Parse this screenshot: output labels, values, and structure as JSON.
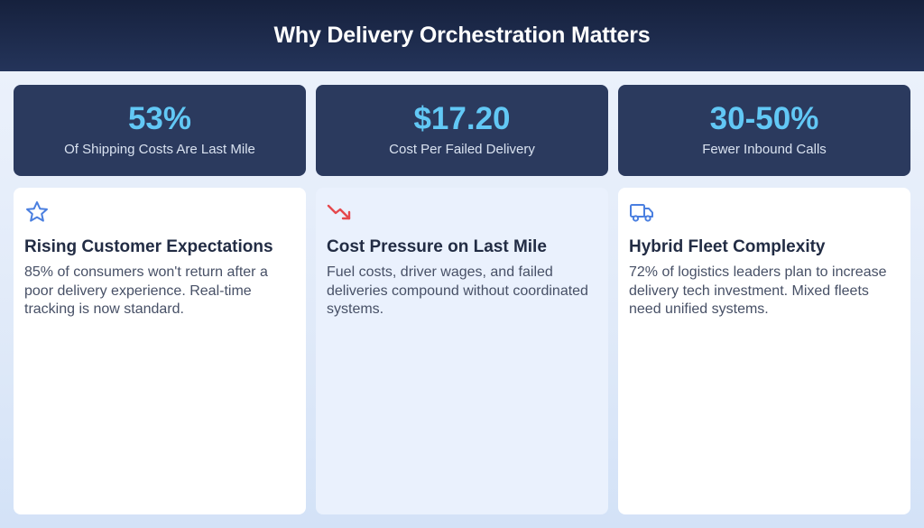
{
  "header": {
    "title": "Why Delivery Orchestration Matters"
  },
  "stats": [
    {
      "value": "53%",
      "label": "Of Shipping Costs Are Last Mile"
    },
    {
      "value": "$17.20",
      "label": "Cost Per Failed Delivery"
    },
    {
      "value": "30-50%",
      "label": "Fewer Inbound Calls"
    }
  ],
  "cards": [
    {
      "icon": "star-icon",
      "title": "Rising Customer Expectations",
      "body": "85% of consumers won't return after a poor delivery experience. Real-time tracking is now standard."
    },
    {
      "icon": "trending-down-icon",
      "title": "Cost Pressure on Last Mile",
      "body": "Fuel costs, driver wages, and failed deliveries compound without coordinated systems."
    },
    {
      "icon": "truck-icon",
      "title": "Hybrid Fleet Complexity",
      "body": "72% of logistics leaders plan to increase delivery tech investment. Mixed fleets need unified systems."
    }
  ],
  "colors": {
    "accent": "#62c8f5",
    "stat_bg": "#2b3a5e",
    "header_bg": "#1c2a4a",
    "star_icon": "#4a7fe0",
    "trend_icon": "#e5484d",
    "truck_icon": "#4a7fe0"
  }
}
